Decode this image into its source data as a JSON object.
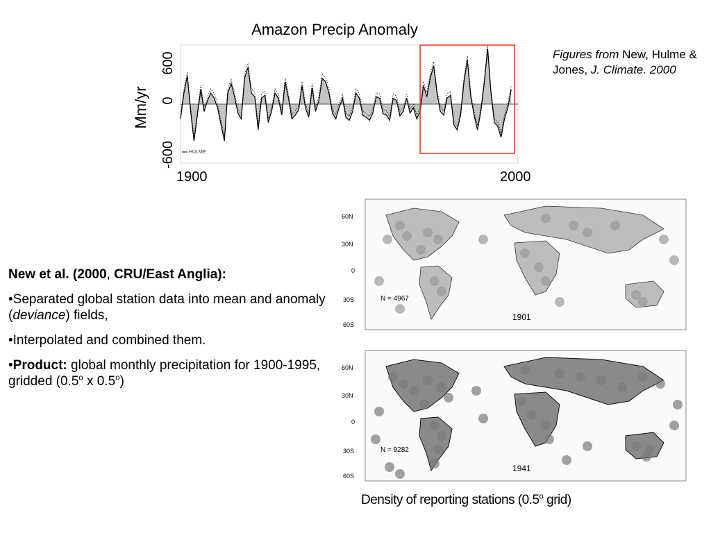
{
  "chart_data": {
    "type": "line",
    "title": "Amazon Precip Anomaly",
    "ylabel": "Mm/yr",
    "yticks": [
      "600",
      "0",
      "-600"
    ],
    "xticks": [
      "1900",
      "2000"
    ],
    "xlim": [
      1900,
      2000
    ],
    "ylim": [
      -800,
      800
    ],
    "legend_label": "HULME",
    "highlight_range": [
      1971,
      1999
    ],
    "highlight_color": "#e03a1e",
    "series": [
      {
        "x": [
          1900,
          1901,
          1902,
          1903,
          1904,
          1905,
          1906,
          1907,
          1908,
          1909,
          1910,
          1911,
          1912,
          1913,
          1914,
          1915,
          1916,
          1917,
          1918,
          1919,
          1920,
          1921,
          1922,
          1923,
          1924,
          1925,
          1926,
          1927,
          1928,
          1929,
          1930,
          1931,
          1932,
          1933,
          1934,
          1935,
          1936,
          1937,
          1938,
          1939,
          1940,
          1941,
          1942,
          1943,
          1944,
          1945,
          1946,
          1947,
          1948,
          1949,
          1950,
          1951,
          1952,
          1953,
          1954,
          1955,
          1956,
          1957,
          1958,
          1959,
          1960,
          1961,
          1962,
          1963,
          1964,
          1965,
          1966,
          1967,
          1968,
          1969,
          1970,
          1971,
          1972,
          1973,
          1974,
          1975,
          1976,
          1977,
          1978,
          1979,
          1980,
          1981,
          1982,
          1983,
          1984,
          1985,
          1986,
          1987,
          1988,
          1989,
          1990,
          1991,
          1992,
          1993,
          1994,
          1995,
          1996,
          1997,
          1998
        ],
        "values": [
          -200,
          150,
          380,
          -100,
          -500,
          -150,
          200,
          -100,
          50,
          150,
          80,
          -60,
          -280,
          -500,
          150,
          280,
          100,
          -120,
          -200,
          350,
          500,
          150,
          100,
          -350,
          80,
          120,
          -250,
          -100,
          150,
          80,
          -150,
          300,
          80,
          -200,
          -150,
          -80,
          250,
          -50,
          -180,
          220,
          -100,
          50,
          350,
          300,
          150,
          -120,
          -200,
          -50,
          80,
          -180,
          -220,
          -100,
          150,
          80,
          -150,
          -180,
          -220,
          -120,
          100,
          80,
          -130,
          -150,
          -220,
          80,
          50,
          -160,
          -100,
          80,
          -120,
          -50,
          -200,
          -100,
          250,
          100,
          350,
          520,
          150,
          -100,
          -150,
          80,
          120,
          -280,
          -350,
          -150,
          300,
          600,
          100,
          -150,
          -350,
          -100,
          280,
          750,
          150,
          -250,
          -300,
          -450,
          -200,
          -50,
          200
        ]
      }
    ]
  },
  "citation": {
    "italic_lead": "Figures from",
    "authors": " New, Hulme & Jones, ",
    "journal": "J. Climate. 2000"
  },
  "notes": {
    "heading_a": "New et al. (2000",
    "heading_b": ", ",
    "heading_c": "CRU/East Anglia):",
    "bullet1_a": "•Separated global station data into mean and anomaly (",
    "bullet1_italic": "deviance",
    "bullet1_b": ") fields,",
    "bullet2": "•Interpolated and combined them.",
    "bullet3_bullet": "•",
    "bullet3_bold": "Product:",
    "bullet3_text": " global monthly precipitation for 1900-1995, gridded (0.5",
    "sup_o": "o",
    "bullet3_mid": " x 0.5",
    "bullet3_end": ")"
  },
  "maps": {
    "lat_labels": [
      "60N",
      "30N",
      "0",
      "30S",
      "60S"
    ],
    "map1": {
      "count_label": "N = 4967",
      "year": "1901"
    },
    "map2": {
      "count_label": "N = 9282",
      "year": "1941"
    }
  },
  "caption": {
    "text_a": "Density of reporting stations (0.5",
    "sup": "o",
    "text_b": " grid)"
  }
}
